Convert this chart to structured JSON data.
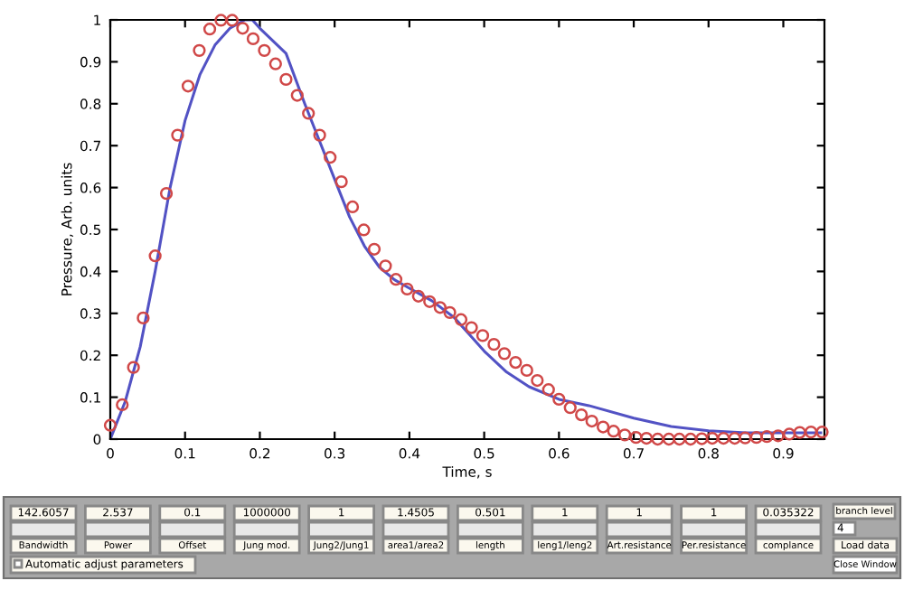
{
  "chart_data": [
    {
      "type": "line",
      "xlabel": "Time, s",
      "ylabel": "Pressure, Arb. units",
      "xlim": [
        0,
        0.955
      ],
      "ylim": [
        0,
        1
      ],
      "xticks": [
        0,
        0.1,
        0.2,
        0.3,
        0.4,
        0.5,
        0.6,
        0.7,
        0.8,
        0.9
      ],
      "yticks": [
        0,
        0.1,
        0.2,
        0.3,
        0.4,
        0.5,
        0.6,
        0.7,
        0.8,
        0.9,
        1
      ],
      "grid": false,
      "legend": false,
      "series": [
        {
          "type": "line",
          "color": "#5252c4",
          "line_style": "solid",
          "marker": "none",
          "x": [
            0,
            0.02,
            0.04,
            0.06,
            0.08,
            0.1,
            0.12,
            0.14,
            0.16,
            0.18,
            0.19,
            0.2,
            0.235,
            0.26,
            0.28,
            0.3,
            0.32,
            0.34,
            0.36,
            0.38,
            0.4,
            0.43,
            0.46,
            0.48,
            0.5,
            0.53,
            0.56,
            0.6,
            0.64,
            0.7,
            0.75,
            0.8,
            0.85,
            0.9,
            0.95
          ],
          "values": [
            0,
            0.09,
            0.22,
            0.4,
            0.6,
            0.76,
            0.87,
            0.94,
            0.98,
            1.0,
            1.0,
            0.98,
            0.92,
            0.8,
            0.71,
            0.62,
            0.53,
            0.46,
            0.41,
            0.38,
            0.36,
            0.33,
            0.29,
            0.25,
            0.21,
            0.16,
            0.125,
            0.095,
            0.08,
            0.05,
            0.03,
            0.02,
            0.015,
            0.015,
            0.015
          ]
        },
        {
          "type": "scatter",
          "color": "#d04848",
          "marker": "circle",
          "x": [
            0,
            0.016,
            0.031,
            0.044,
            0.06,
            0.075,
            0.09,
            0.104,
            0.119,
            0.133,
            0.148,
            0.163,
            0.177,
            0.191,
            0.206,
            0.221,
            0.235,
            0.25,
            0.265,
            0.28,
            0.294,
            0.309,
            0.324,
            0.339,
            0.353,
            0.368,
            0.382,
            0.397,
            0.412,
            0.427,
            0.441,
            0.454,
            0.469,
            0.483,
            0.498,
            0.513,
            0.527,
            0.542,
            0.557,
            0.571,
            0.586,
            0.6,
            0.615,
            0.63,
            0.644,
            0.659,
            0.673,
            0.688,
            0.703,
            0.717,
            0.732,
            0.747,
            0.761,
            0.776,
            0.791,
            0.805,
            0.82,
            0.835,
            0.849,
            0.864,
            0.878,
            0.893,
            0.908,
            0.922,
            0.937,
            0.952
          ],
          "values": [
            0.033,
            0.082,
            0.171,
            0.289,
            0.437,
            0.586,
            0.725,
            0.842,
            0.927,
            0.978,
            0.999,
            0.999,
            0.98,
            0.955,
            0.927,
            0.895,
            0.858,
            0.82,
            0.777,
            0.725,
            0.672,
            0.614,
            0.554,
            0.499,
            0.453,
            0.413,
            0.381,
            0.358,
            0.341,
            0.328,
            0.314,
            0.302,
            0.285,
            0.266,
            0.247,
            0.226,
            0.204,
            0.183,
            0.164,
            0.14,
            0.118,
            0.095,
            0.075,
            0.058,
            0.043,
            0.029,
            0.019,
            0.01,
            0.004,
            0.002,
            0,
            0,
            0,
            0,
            0.001,
            0.002,
            0.002,
            0.002,
            0.003,
            0.004,
            0.006,
            0.008,
            0.012,
            0.016,
            0.017,
            0.017
          ]
        }
      ]
    },
    {
      "type": "other",
      "annotations": [
        "142.6057",
        "Bandwidth",
        "2.537",
        "Power",
        "0.1",
        "Offset",
        "1000000",
        "Jung mod.",
        "1",
        "Jung2/Jung1",
        "1.4505",
        "area1/area2",
        "0.501",
        "length",
        "1",
        "leng1/leng2",
        "1",
        "Art.resistance",
        "1",
        "Per.resistance",
        "0.035322",
        "complance",
        "Automatic adjust parameters",
        "branch level",
        "4",
        "Load data",
        "Close Window"
      ]
    }
  ]
}
